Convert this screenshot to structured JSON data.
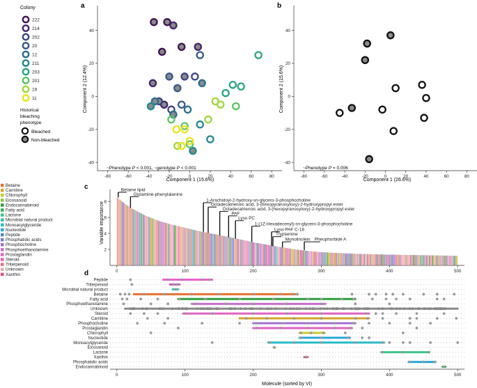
{
  "panel_letters": {
    "a": "a",
    "b": "b",
    "c": "c",
    "d": "d"
  },
  "colony_legend": {
    "title": "Colony",
    "items": [
      {
        "label": "222",
        "color": "#3f1355"
      },
      {
        "label": "214",
        "color": "#45246e"
      },
      {
        "label": "202",
        "color": "#3d4585"
      },
      {
        "label": "20",
        "color": "#355a8c"
      },
      {
        "label": "12",
        "color": "#2a6f8e"
      },
      {
        "label": "211",
        "color": "#21898c"
      },
      {
        "label": "203",
        "color": "#27a582"
      },
      {
        "label": "201",
        "color": "#5cc562"
      },
      {
        "label": "19",
        "color": "#9fd83a"
      },
      {
        "label": "11",
        "color": "#e6e41f"
      }
    ]
  },
  "bleaching_legend": {
    "title_lines": [
      "Historical",
      "bleaching",
      "phenotype"
    ],
    "items": [
      {
        "label": "Bleached"
      },
      {
        "label": "Non-bleached"
      }
    ]
  },
  "category_legend": {
    "items": [
      {
        "label": "Betaine",
        "color": "#e8712f"
      },
      {
        "label": "Carnitine",
        "color": "#d4a52a"
      },
      {
        "label": "Chlorophyll",
        "color": "#c9cc2e"
      },
      {
        "label": "Eicosanoid",
        "color": "#8fc63a"
      },
      {
        "label": "Endocannabinoid",
        "color": "#2f9e3f"
      },
      {
        "label": "Fatty acid",
        "color": "#36b153"
      },
      {
        "label": "Lactone",
        "color": "#3ec48a"
      },
      {
        "label": "Microbial natural product",
        "color": "#3bbfae"
      },
      {
        "label": "Monoacylglyceride",
        "color": "#27bcc6"
      },
      {
        "label": "Nucleotide",
        "color": "#2aa7d6"
      },
      {
        "label": "Peptide",
        "color": "#4d86d2"
      },
      {
        "label": "Phosphatidic acids",
        "color": "#7c79d1"
      },
      {
        "label": "Phosphocholine",
        "color": "#9f72cf"
      },
      {
        "label": "Phosphoethanolamine",
        "color": "#c56bcc"
      },
      {
        "label": "Prostaglandin",
        "color": "#e063c1"
      },
      {
        "label": "Steroid",
        "color": "#ea5ea6"
      },
      {
        "label": "Triterpenoid",
        "color": "#ee6c8b"
      },
      {
        "label": "Unknown",
        "color": "#f2a3b5"
      },
      {
        "label": "Xanthin",
        "color": "#dc4f7a"
      }
    ]
  },
  "annotation_text": {
    "a": [
      "~Phenotype ",
      "P",
      " < 0.001, ~genotype ",
      "P",
      " < 0.001"
    ],
    "b": [
      "~Phenotype ",
      "P",
      " = 0.006"
    ]
  },
  "chart_data": [
    {
      "id": "a",
      "type": "scatter",
      "xlabel": "Component 1 (15.6%)",
      "ylabel": "Component 2 (12.4%)",
      "xlim": [
        -90,
        90
      ],
      "ylim": [
        -45,
        55
      ],
      "xticks": [
        -80,
        -60,
        -40,
        -20,
        0,
        20,
        40,
        60,
        80
      ],
      "yticks": [
        -40,
        -20,
        0,
        20,
        40
      ],
      "points": [
        {
          "x": -35,
          "y": 45,
          "colony": "222",
          "phenotype": "Non-bleached"
        },
        {
          "x": -22,
          "y": 45,
          "colony": "222",
          "phenotype": "Non-bleached"
        },
        {
          "x": -8,
          "y": 30,
          "colony": "222",
          "phenotype": "Non-bleached"
        },
        {
          "x": -27,
          "y": 27,
          "colony": "222",
          "phenotype": "Non-bleached"
        },
        {
          "x": -16,
          "y": 43,
          "colony": "214",
          "phenotype": "Non-bleached"
        },
        {
          "x": -36,
          "y": 8,
          "colony": "214",
          "phenotype": "Non-bleached"
        },
        {
          "x": -25,
          "y": -5,
          "colony": "214",
          "phenotype": "Non-bleached"
        },
        {
          "x": 8,
          "y": 30,
          "colony": "214",
          "phenotype": "Non-bleached"
        },
        {
          "x": -5,
          "y": 12,
          "colony": "202",
          "phenotype": "Non-bleached"
        },
        {
          "x": -18,
          "y": -8,
          "colony": "202",
          "phenotype": "Bleached"
        },
        {
          "x": -30,
          "y": -3,
          "colony": "202",
          "phenotype": "Non-bleached"
        },
        {
          "x": 5,
          "y": 12,
          "colony": "202",
          "phenotype": "Bleached"
        },
        {
          "x": -20,
          "y": 12,
          "colony": "20",
          "phenotype": "Non-bleached"
        },
        {
          "x": 10,
          "y": 25,
          "colony": "20",
          "phenotype": "Bleached"
        },
        {
          "x": -12,
          "y": 5,
          "colony": "20",
          "phenotype": "Non-bleached"
        },
        {
          "x": -8,
          "y": -5,
          "colony": "20",
          "phenotype": "Bleached"
        },
        {
          "x": -34,
          "y": -3,
          "colony": "12",
          "phenotype": "Non-bleached"
        },
        {
          "x": -16,
          "y": -11,
          "colony": "12",
          "phenotype": "Non-bleached"
        },
        {
          "x": -2,
          "y": -8,
          "colony": "12",
          "phenotype": "Bleached"
        },
        {
          "x": 12,
          "y": 8,
          "colony": "12",
          "phenotype": "Non-bleached"
        },
        {
          "x": -38,
          "y": -6,
          "colony": "211",
          "phenotype": "Non-bleached"
        },
        {
          "x": 10,
          "y": -17,
          "colony": "211",
          "phenotype": "Bleached"
        },
        {
          "x": 20,
          "y": -26,
          "colony": "211",
          "phenotype": "Bleached"
        },
        {
          "x": 3,
          "y": -33,
          "colony": "211",
          "phenotype": "Non-bleached"
        },
        {
          "x": 67,
          "y": 25,
          "colony": "203",
          "phenotype": "Bleached"
        },
        {
          "x": 42,
          "y": 7,
          "colony": "203",
          "phenotype": "Bleached"
        },
        {
          "x": 50,
          "y": 6,
          "colony": "203",
          "phenotype": "Bleached"
        },
        {
          "x": 35,
          "y": 2,
          "colony": "203",
          "phenotype": "Bleached"
        },
        {
          "x": 45,
          "y": -6,
          "colony": "201",
          "phenotype": "Bleached"
        },
        {
          "x": -5,
          "y": -18,
          "colony": "201",
          "phenotype": "Bleached"
        },
        {
          "x": -18,
          "y": -14,
          "colony": "201",
          "phenotype": "Bleached"
        },
        {
          "x": 0,
          "y": -29,
          "colony": "201",
          "phenotype": "Bleached"
        },
        {
          "x": 18,
          "y": -14,
          "colony": "19",
          "phenotype": "Bleached"
        },
        {
          "x": 25,
          "y": -3,
          "colony": "19",
          "phenotype": "Bleached"
        },
        {
          "x": -12,
          "y": -30,
          "colony": "19",
          "phenotype": "Bleached"
        },
        {
          "x": 30,
          "y": -5,
          "colony": "19",
          "phenotype": "Bleached"
        },
        {
          "x": -13,
          "y": -20,
          "colony": "11",
          "phenotype": "Bleached"
        },
        {
          "x": -5,
          "y": -20,
          "colony": "11",
          "phenotype": "Bleached"
        },
        {
          "x": -8,
          "y": -30,
          "colony": "11",
          "phenotype": "Bleached"
        },
        {
          "x": 0,
          "y": -27,
          "colony": "11",
          "phenotype": "Bleached"
        }
      ]
    },
    {
      "id": "b",
      "type": "scatter",
      "xlabel": "Component 1 (26.6%)",
      "ylabel": "Component 2 (15.6%)",
      "xlim": [
        -90,
        90
      ],
      "ylim": [
        -45,
        55
      ],
      "xticks": [
        -80,
        -60,
        -40,
        -20,
        0,
        20,
        40,
        60,
        80
      ],
      "yticks": [
        -40,
        -20,
        0,
        20,
        40
      ],
      "points": [
        {
          "x": 5,
          "y": 37,
          "phenotype": "Non-bleached"
        },
        {
          "x": -18,
          "y": 32,
          "colony": "",
          "phenotype": "Non-bleached"
        },
        {
          "x": -20,
          "y": 22,
          "phenotype": "Non-bleached"
        },
        {
          "x": 10,
          "y": 5,
          "phenotype": "Bleached"
        },
        {
          "x": 36,
          "y": 7,
          "phenotype": "Bleached"
        },
        {
          "x": 40,
          "y": -1,
          "phenotype": "Bleached"
        },
        {
          "x": -3,
          "y": -8,
          "phenotype": "Bleached"
        },
        {
          "x": 38,
          "y": -13,
          "phenotype": "Bleached"
        },
        {
          "x": -33,
          "y": -7,
          "phenotype": "Non-bleached"
        },
        {
          "x": -45,
          "y": -10,
          "phenotype": "Bleached"
        },
        {
          "x": 8,
          "y": -21,
          "phenotype": "Bleached"
        },
        {
          "x": -16,
          "y": -38,
          "phenotype": "Non-bleached"
        }
      ]
    },
    {
      "id": "c",
      "type": "bar",
      "xlabel": "",
      "ylabel": "Variable importance",
      "xlim": [
        -10,
        510
      ],
      "xticks": [
        0,
        100,
        200,
        300,
        400,
        500
      ],
      "n_bars": 500,
      "vi_profile": [
        [
          0,
          8.5
        ],
        [
          10,
          7.8
        ],
        [
          20,
          7.2
        ],
        [
          40,
          6.3
        ],
        [
          60,
          5.6
        ],
        [
          80,
          5.1
        ],
        [
          100,
          4.7
        ],
        [
          125,
          4.2
        ],
        [
          150,
          3.8
        ],
        [
          175,
          3.35
        ],
        [
          200,
          2.9
        ],
        [
          225,
          2.5
        ],
        [
          250,
          2.15
        ],
        [
          275,
          1.85
        ],
        [
          300,
          1.65
        ],
        [
          350,
          1.45
        ],
        [
          400,
          1.35
        ],
        [
          450,
          1.28
        ],
        [
          499,
          1.2
        ]
      ],
      "annotations": [
        {
          "label": "Betaine lipid",
          "x": 2,
          "y": 8.5,
          "label_x": 2,
          "label_y": 9.15
        },
        {
          "label": "Glutamine-phenylalanine",
          "x": 20,
          "y": 7.2,
          "label_x": 20,
          "label_y": 8.6
        },
        {
          "label": "1-Arachidoyl-2-hydroxy-sn-glycero-3-phosphocholine",
          "x": 127,
          "y": 4.2,
          "label_x": 127,
          "label_y": 7.85
        },
        {
          "label": "Octadecatrienoic acid, 3-(hexopyranosyloxy)-2-hydroxypropyl ester",
          "x": 134,
          "y": 4.05,
          "label_x": 134,
          "label_y": 7.3
        },
        {
          "label": "Octadecatrienoic acid, 3-(hexopyranosyloxy)-2-hydroxypropyl ester",
          "x": 151,
          "y": 3.75,
          "label_x": 151,
          "label_y": 6.75
        },
        {
          "label": "PAF",
          "x": 164,
          "y": 3.5,
          "label_x": 164,
          "label_y": 6.2
        },
        {
          "label": "Lyso PC",
          "x": 174,
          "y": 3.35,
          "label_x": 174,
          "label_y": 5.6
        },
        {
          "label": "1-(1Z-Hexadecenyl)-sn-glycero-3-phosphocholine",
          "x": 198,
          "y": 2.95,
          "label_x": 198,
          "label_y": 4.9
        },
        {
          "label": "Lyso-PAF C-18",
          "x": 227,
          "y": 2.45,
          "label_x": 227,
          "label_y": 4.2
        },
        {
          "label": "Tryptamine",
          "x": 229,
          "y": 2.4,
          "label_x": 229,
          "label_y": 3.6
        },
        {
          "label": "Monolinolein",
          "x": 243,
          "y": 2.25,
          "label_x": 243,
          "label_y": 2.95
        },
        {
          "label": "Pheophorbide A",
          "x": 275,
          "y": 1.9,
          "label_x": 286,
          "label_y": 2.95
        }
      ]
    },
    {
      "id": "d",
      "type": "scatter",
      "xlabel": "Molecule (sorted by VI)",
      "xlim": [
        -10,
        510
      ],
      "xticks": [
        0,
        100,
        200,
        300,
        400,
        500
      ],
      "rows": [
        {
          "label": "Peptide",
          "range": [
            68,
            140
          ],
          "color": "#ee5fd0",
          "points": [
            20,
            75,
            95,
            125,
            135
          ]
        },
        {
          "label": "Triterpenoid",
          "range": [
            78,
            92
          ],
          "color": "#d94fbf",
          "points": [
            22,
            83,
            88
          ]
        },
        {
          "label": "Microbial natural product",
          "range": [
            82,
            90
          ],
          "color": "#3bbfae",
          "points": [
            86
          ]
        },
        {
          "label": "Betaine",
          "range": [
            25,
            262
          ],
          "color": "#e8712f",
          "points": [
            5,
            12,
            18,
            40,
            70,
            110,
            150,
            200,
            240,
            258,
            265,
            345,
            370,
            380,
            395,
            405,
            420,
            450,
            470,
            495
          ]
        },
        {
          "label": "Fatty acid",
          "range": [
            90,
            350
          ],
          "color": "#2f9e3f",
          "points": [
            8,
            15,
            35,
            60,
            92,
            130,
            180,
            230,
            280,
            300,
            330,
            348,
            375,
            395,
            410,
            430,
            470,
            480
          ]
        },
        {
          "label": "Phosphoethanolamine",
          "range": [
            110,
            306
          ],
          "color": "#c56bcc",
          "points": [
            10,
            50,
            75,
            115,
            160,
            200,
            250,
            300,
            350,
            400
          ]
        },
        {
          "label": "Unknown",
          "range": [
            12,
            500
          ],
          "color": "#888888",
          "points": []
        },
        {
          "label": "Steroid",
          "range": [
            97,
            370
          ],
          "color": "#e063c1",
          "points": [
            20,
            40,
            60,
            100,
            140,
            200,
            250,
            300,
            365,
            380,
            390,
            410,
            440,
            480
          ]
        },
        {
          "label": "Carnitine",
          "range": [
            180,
            370
          ],
          "color": "#d4a52a",
          "points": [
            45,
            75,
            190,
            220,
            260,
            300,
            350,
            368,
            390,
            430,
            440,
            470,
            498
          ]
        },
        {
          "label": "Phosphocholine",
          "range": [
            200,
            350
          ],
          "color": "#9f72cf",
          "points": [
            30,
            70,
            125,
            180,
            205,
            245,
            280,
            320,
            348,
            370,
            400,
            430,
            460
          ]
        },
        {
          "label": "Prostaglandin",
          "range": [
            200,
            345
          ],
          "color": "#e063c1",
          "points": [
            90,
            205,
            240,
            280,
            320,
            343,
            360,
            440
          ]
        },
        {
          "label": "Chlorophyll",
          "range": [
            268,
            305
          ],
          "color": "#c9cc2e",
          "points": [
            50,
            270,
            285,
            303,
            335,
            420
          ]
        },
        {
          "label": "Nucleotide",
          "range": [
            268,
            342
          ],
          "color": "#2aa7d6",
          "points": [
            270,
            300,
            340,
            360,
            370
          ]
        },
        {
          "label": "Monoacylglyceride",
          "range": [
            222,
            392
          ],
          "color": "#27bcc6",
          "points": [
            140,
            225,
            260,
            300,
            350,
            390,
            400,
            420,
            430,
            460,
            500
          ]
        },
        {
          "label": "Eicosanoid",
          "range": [
            230,
            232
          ],
          "color": "#8fc63a",
          "points": [
            231
          ]
        },
        {
          "label": "Lactone",
          "range": [
            388,
            458
          ],
          "color": "#3ec48a",
          "points": [
            390,
            420,
            458
          ]
        },
        {
          "label": "Xanthin",
          "range": [
            275,
            280
          ],
          "color": "#dc4f7a",
          "points": [
            278
          ]
        },
        {
          "label": "Phosphatidic acids",
          "range": [
            428,
            467
          ],
          "color": "#22aadd",
          "points": [
            430,
            450,
            467
          ]
        },
        {
          "label": "Endocannabinoid",
          "range": [
            478,
            482
          ],
          "color": "#2f9e3f",
          "points": [
            480
          ]
        }
      ]
    }
  ]
}
